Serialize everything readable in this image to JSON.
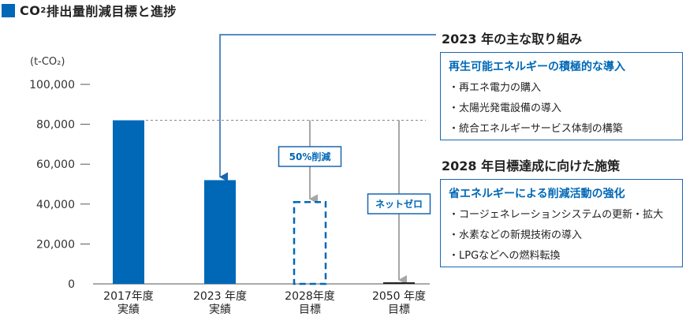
{
  "title": {
    "main": "CO",
    "sub": "2",
    "rest": "排出量削減目標と進捗"
  },
  "chart_data": {
    "type": "bar",
    "unit_label": "(t-CO₂)",
    "categories": [
      {
        "year": "2017年度",
        "kind": "実績"
      },
      {
        "year": "2023 年度",
        "kind": "実績"
      },
      {
        "year": "2028年度",
        "kind": "目標"
      },
      {
        "year": "2050 年度",
        "kind": "目標"
      }
    ],
    "values": [
      82000,
      52000,
      41000,
      0
    ],
    "bar_styles": [
      "solid",
      "solid",
      "dashed-outline",
      "line"
    ],
    "ylim": [
      0,
      100000
    ],
    "yticks": [
      "0",
      "20,000",
      "40,000",
      "60,000",
      "80,000",
      "100,000"
    ],
    "ytick_values": [
      0,
      20000,
      40000,
      60000,
      80000,
      100000
    ],
    "reference_value": 82000,
    "callouts": [
      {
        "text": "50%削減",
        "category_index": 2
      },
      {
        "text": "ネットゼロ",
        "category_index": 3
      }
    ],
    "colors": {
      "bar": "#0068b7",
      "arrow_blue": "#1a66b0",
      "arrow_gray": "#a6a6a6",
      "dash_line": "#888888"
    }
  },
  "panels": [
    {
      "heading": "2023 年の主な取り組み",
      "box_title": "再生可能エネルギーの積極的な導入",
      "items": [
        "再エネ電力の購入",
        "太陽光発電設備の導入",
        "統合エネルギーサービス体制の構築"
      ]
    },
    {
      "heading": "2028 年目標達成に向けた施策",
      "box_title": "省エネルギーによる削減活動の強化",
      "items": [
        "コージェネレーションシステムの更新・拡大",
        "水素などの新規技術の導入",
        "LPGなどへの燃料転換"
      ]
    }
  ]
}
